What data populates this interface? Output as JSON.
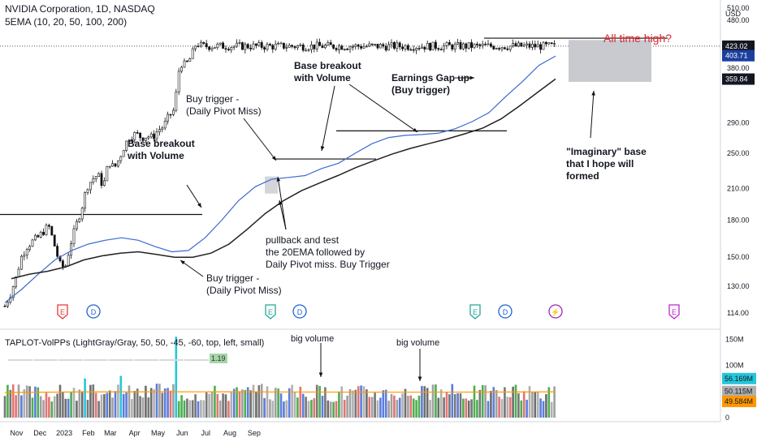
{
  "header": {
    "title": "NVIDIA Corporation, 1D, NASDAQ",
    "indicator": "5EMA (10, 20, 50, 100, 200)"
  },
  "volume_indicator": {
    "label": "TAPLOT-VolPPs (LightGray/Gray, 50, 50, -45, -60, top, left, small)",
    "pivots": [
      "1.19"
    ]
  },
  "annotations": {
    "base_breakout_1": [
      "Base breakout",
      "with Volume"
    ],
    "buy_trigger_1": [
      "Buy trigger -",
      "(Daily Pivot Miss)"
    ],
    "base_breakout_2": [
      "Base breakout",
      "with Volume"
    ],
    "earnings": [
      "Earnings Gap up",
      "(Buy trigger)"
    ],
    "all_time_high": "All time high?",
    "imaginary_base": [
      "\"Imaginary\" base",
      "that I hope will",
      "formed"
    ],
    "pullback": [
      "pullback and test",
      "the 20EMA followed by",
      "Daily Pivot miss. Buy Trigger"
    ],
    "buy_trigger_2": [
      "Buy trigger -",
      "(Daily Pivot Miss)"
    ],
    "big_volume_1": "big volume",
    "big_volume_2": "big volume"
  },
  "price_axis": {
    "currency": "USD",
    "ticks": [
      "510.00",
      "480.00",
      "380.00",
      "290.00",
      "250.00",
      "210.00",
      "180.00",
      "150.00",
      "130.00",
      "114.00"
    ],
    "labels": [
      {
        "value": "423.02",
        "color": "#131722"
      },
      {
        "value": "403.71",
        "color": "#1b3f9e"
      },
      {
        "value": "359.84",
        "color": "#131722"
      }
    ]
  },
  "volume_axis": {
    "ticks": [
      "150M",
      "100M",
      "0"
    ],
    "labels": [
      {
        "value": "56.169M",
        "color": "#26c6da"
      },
      {
        "value": "50.115M",
        "color": "#b0b0b0"
      },
      {
        "value": "49.584M",
        "color": "#ff9800"
      }
    ]
  },
  "time_axis": [
    "Nov",
    "Dec",
    "2023",
    "Feb",
    "Mar",
    "Apr",
    "May",
    "Jun",
    "Jul",
    "Aug",
    "Sep"
  ],
  "events": [
    {
      "letter": "E",
      "color": "#e53935"
    },
    {
      "letter": "D",
      "color": "#1e64d2"
    },
    {
      "letter": "E",
      "color": "#26a69a"
    },
    {
      "letter": "D",
      "color": "#1e64d2"
    },
    {
      "letter": "E",
      "color": "#26a69a"
    },
    {
      "letter": "D",
      "color": "#1e64d2"
    },
    {
      "letter": "⚡",
      "color": "#9c27b0"
    },
    {
      "letter": "E",
      "color": "#c026d3"
    }
  ],
  "chart_data": {
    "type": "candlestick",
    "ylog": true,
    "ylim": [
      110,
      510
    ],
    "last_price": 423.02,
    "ema_short_last": 403.71,
    "ema_long_last": 359.84,
    "price_close": [
      {
        "date": "2022-10-17",
        "close": 118
      },
      {
        "date": "2022-10-24",
        "close": 125
      },
      {
        "date": "2022-10-31",
        "close": 135
      },
      {
        "date": "2022-11-07",
        "close": 150
      },
      {
        "date": "2022-11-14",
        "close": 158
      },
      {
        "date": "2022-11-21",
        "close": 162
      },
      {
        "date": "2022-11-28",
        "close": 165
      },
      {
        "date": "2022-12-05",
        "close": 170
      },
      {
        "date": "2022-12-12",
        "close": 175
      },
      {
        "date": "2022-12-19",
        "close": 160
      },
      {
        "date": "2022-12-26",
        "close": 145
      },
      {
        "date": "2023-01-02",
        "close": 142
      },
      {
        "date": "2023-01-09",
        "close": 160
      },
      {
        "date": "2023-01-16",
        "close": 175
      },
      {
        "date": "2023-01-23",
        "close": 190
      },
      {
        "date": "2023-01-30",
        "close": 212
      },
      {
        "date": "2023-02-06",
        "close": 220
      },
      {
        "date": "2023-02-13",
        "close": 225
      },
      {
        "date": "2023-02-20",
        "close": 212
      },
      {
        "date": "2023-02-27",
        "close": 240
      },
      {
        "date": "2023-03-06",
        "close": 232
      },
      {
        "date": "2023-03-13",
        "close": 245
      },
      {
        "date": "2023-03-20",
        "close": 262
      },
      {
        "date": "2023-03-27",
        "close": 272
      },
      {
        "date": "2023-04-03",
        "close": 275
      },
      {
        "date": "2023-04-10",
        "close": 270
      },
      {
        "date": "2023-04-17",
        "close": 272
      },
      {
        "date": "2023-04-24",
        "close": 270
      },
      {
        "date": "2023-05-01",
        "close": 280
      },
      {
        "date": "2023-05-08",
        "close": 285
      },
      {
        "date": "2023-05-15",
        "close": 300
      },
      {
        "date": "2023-05-22",
        "close": 310
      },
      {
        "date": "2023-05-29",
        "close": 390
      },
      {
        "date": "2023-06-05",
        "close": 385
      },
      {
        "date": "2023-06-12",
        "close": 400
      },
      {
        "date": "2023-06-19",
        "close": 430
      },
      {
        "date": "2023-06-26",
        "close": 423
      }
    ],
    "series": [
      {
        "name": "EMA 20",
        "color": "#3a6ad0",
        "values": [
          120,
          128,
          138,
          148,
          155,
          160,
          163,
          165,
          163,
          158,
          154,
          155,
          165,
          180,
          198,
          212,
          220,
          222,
          224,
          232,
          238,
          250,
          262,
          270,
          273,
          274,
          276,
          282,
          292,
          305,
          330,
          355,
          385,
          403
        ]
      },
      {
        "name": "EMA 50",
        "color": "#222222",
        "values": [
          135,
          138,
          140,
          143,
          148,
          151,
          153,
          154,
          152,
          150,
          150,
          153,
          160,
          172,
          186,
          198,
          208,
          216,
          224,
          233,
          241,
          249,
          256,
          262,
          268,
          275,
          283,
          296,
          315,
          337,
          360
        ]
      }
    ],
    "volume": {
      "unit": "M",
      "ylim": [
        0,
        160
      ],
      "avg_line_color": "#ff9800",
      "avg_last": 49.584,
      "notable": [
        {
          "date": "2023-01-27",
          "value": 75
        },
        {
          "date": "2023-03-13",
          "value": 80
        },
        {
          "date": "2023-05-01",
          "value": 65
        },
        {
          "date": "2023-05-25",
          "value": 155
        }
      ]
    }
  }
}
